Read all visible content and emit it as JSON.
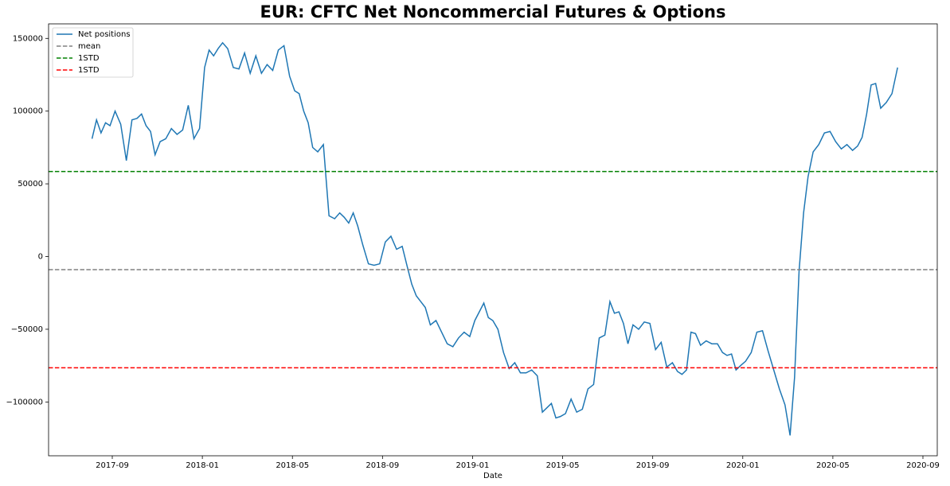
{
  "chart_data": {
    "type": "line",
    "title": "EUR: CFTC Net Noncommercial Futures & Options",
    "x_label": "Date",
    "xticks": [
      "2017-09",
      "2018-01",
      "2018-05",
      "2018-09",
      "2019-01",
      "2019-05",
      "2019-09",
      "2020-01",
      "2020-05",
      "2020-09"
    ],
    "ylim": [
      -137000,
      160000
    ],
    "yticks": [
      {
        "value": -100000,
        "label": "−100000"
      },
      {
        "value": -50000,
        "label": "−50000"
      },
      0,
      50000,
      100000,
      150000
    ],
    "legend": "upper left",
    "series": [
      {
        "name": "Net positions",
        "color": "#1f77b4",
        "x": [
          "2017-08",
          "2017-08",
          "2017-08",
          "2017-08",
          "2017-08",
          "2017-09",
          "2017-09",
          "2017-09",
          "2017-09",
          "2017-10",
          "2017-10",
          "2017-10",
          "2017-10",
          "2017-10",
          "2017-11",
          "2017-11",
          "2017-11",
          "2017-11",
          "2017-12",
          "2017-12",
          "2017-12",
          "2017-12",
          "2018-01",
          "2018-01",
          "2018-01",
          "2018-01",
          "2018-01",
          "2018-02",
          "2018-02",
          "2018-02",
          "2018-02",
          "2018-03",
          "2018-03",
          "2018-03",
          "2018-03",
          "2018-04",
          "2018-04",
          "2018-04",
          "2018-04",
          "2018-05",
          "2018-05",
          "2018-05",
          "2018-05",
          "2018-05",
          "2018-06",
          "2018-06",
          "2018-06",
          "2018-06",
          "2018-07",
          "2018-07",
          "2018-07",
          "2018-07",
          "2018-07",
          "2018-08",
          "2018-08",
          "2018-08",
          "2018-08",
          "2018-09",
          "2018-09",
          "2018-09",
          "2018-09",
          "2018-10",
          "2018-10",
          "2018-10",
          "2018-10",
          "2018-10",
          "2018-11",
          "2018-11",
          "2018-11",
          "2018-11",
          "2018-12",
          "2018-12",
          "2018-12",
          "2018-12",
          "2019-01",
          "2019-01",
          "2019-01",
          "2019-01",
          "2019-01",
          "2019-02",
          "2019-02",
          "2019-02",
          "2019-02",
          "2019-03",
          "2019-03",
          "2019-03",
          "2019-03",
          "2019-04",
          "2019-04",
          "2019-04",
          "2019-04",
          "2019-04",
          "2019-05",
          "2019-05",
          "2019-05",
          "2019-05",
          "2019-06",
          "2019-06",
          "2019-06",
          "2019-06",
          "2019-07",
          "2019-07",
          "2019-07",
          "2019-07",
          "2019-07",
          "2019-08",
          "2019-08",
          "2019-08",
          "2019-08",
          "2019-09",
          "2019-09",
          "2019-09",
          "2019-09",
          "2019-10",
          "2019-10",
          "2019-10",
          "2019-10",
          "2019-10",
          "2019-11",
          "2019-11",
          "2019-11",
          "2019-11",
          "2019-12",
          "2019-12",
          "2019-12",
          "2019-12",
          "2019-12",
          "2020-01",
          "2020-01",
          "2020-01",
          "2020-01",
          "2020-02",
          "2020-02",
          "2020-02",
          "2020-02",
          "2020-03",
          "2020-03",
          "2020-03",
          "2020-03",
          "2020-03",
          "2020-04",
          "2020-04",
          "2020-04",
          "2020-04",
          "2020-05",
          "2020-05",
          "2020-05",
          "2020-05",
          "2020-06",
          "2020-06",
          "2020-06",
          "2020-06",
          "2020-06",
          "2020-07",
          "2020-07",
          "2020-07",
          "2020-07"
        ],
        "values": [
          81000,
          94000,
          85000,
          92000,
          90000,
          100000,
          91000,
          66000,
          94000,
          95000,
          98000,
          90000,
          86000,
          70000,
          79000,
          81000,
          88000,
          84000,
          87000,
          104000,
          81000,
          88000,
          130000,
          142000,
          138000,
          143000,
          147000,
          143000,
          130000,
          129000,
          140000,
          126000,
          138000,
          126000,
          132000,
          128000,
          142000,
          145000,
          124000,
          114000,
          112000,
          100000,
          92000,
          75000,
          72000,
          77000,
          28000,
          26000,
          30000,
          27000,
          23000,
          30000,
          21000,
          8000,
          -5000,
          -6000,
          -5000,
          10000,
          14000,
          5000,
          7000,
          -7000,
          -19000,
          -27000,
          -31000,
          -35000,
          -47000,
          -44000,
          -52000,
          -60000,
          -62000,
          -56000,
          -52000,
          -55000,
          -44000,
          -38000,
          -32000,
          -42000,
          -44000,
          -50000,
          -66000,
          -77000,
          -73000,
          -80000,
          -80000,
          -78000,
          -82000,
          -107000,
          -104000,
          -101000,
          -111000,
          -110000,
          -108000,
          -98000,
          -107000,
          -105000,
          -91000,
          -88000,
          -56000,
          -54000,
          -31000,
          -39000,
          -38000,
          -46000,
          -60000,
          -47000,
          -50000,
          -45000,
          -46000,
          -64000,
          -59000,
          -76000,
          -73000,
          -79000,
          -81000,
          -78000,
          -52000,
          -53000,
          -61000,
          -58000,
          -60000,
          -60000,
          -66000,
          -68000,
          -67000,
          -78000,
          -75000,
          -72000,
          -66000,
          -52000,
          -51000,
          -65000,
          -78000,
          -91000,
          -102000,
          -123000,
          -83000,
          -10000,
          30000,
          55000,
          72000,
          77000,
          85000,
          86000,
          79000,
          74000,
          77000,
          73000,
          76000,
          82000,
          98000,
          118000,
          119000,
          102000,
          106000,
          112000,
          130000
        ]
      },
      {
        "name": "mean",
        "color": "#808080",
        "dashed": true,
        "value": -9000
      },
      {
        "name": "1STD",
        "color": "#008000",
        "dashed": true,
        "value": 58500
      },
      {
        "name": "1STD",
        "color": "#ff0000",
        "dashed": true,
        "value": -76500
      }
    ]
  }
}
